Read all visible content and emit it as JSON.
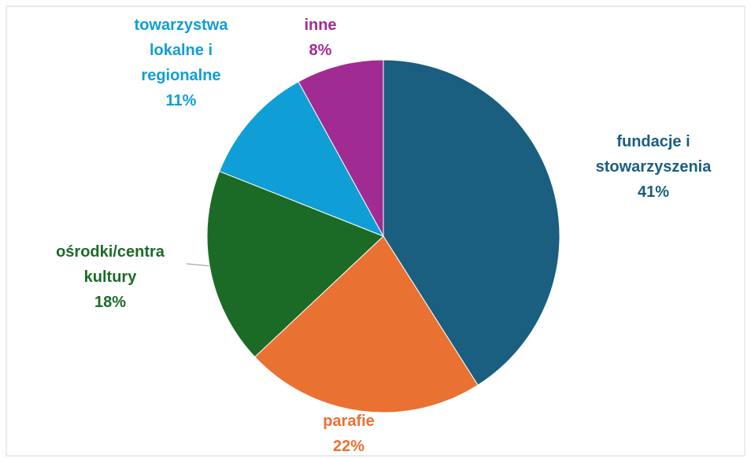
{
  "chart_data": {
    "type": "pie",
    "categories": [
      "fundacje i stowarzyszenia",
      "parafie",
      "ośrodki/centra kultury",
      "towarzystwa lokalne i regionalne",
      "inne"
    ],
    "values": [
      41,
      22,
      18,
      11,
      8
    ],
    "value_labels": [
      "41%",
      "22%",
      "18%",
      "11%",
      "8%"
    ],
    "colors": [
      "#1a5e80",
      "#e97132",
      "#1b6b26",
      "#0f9ed5",
      "#a02b93"
    ]
  }
}
